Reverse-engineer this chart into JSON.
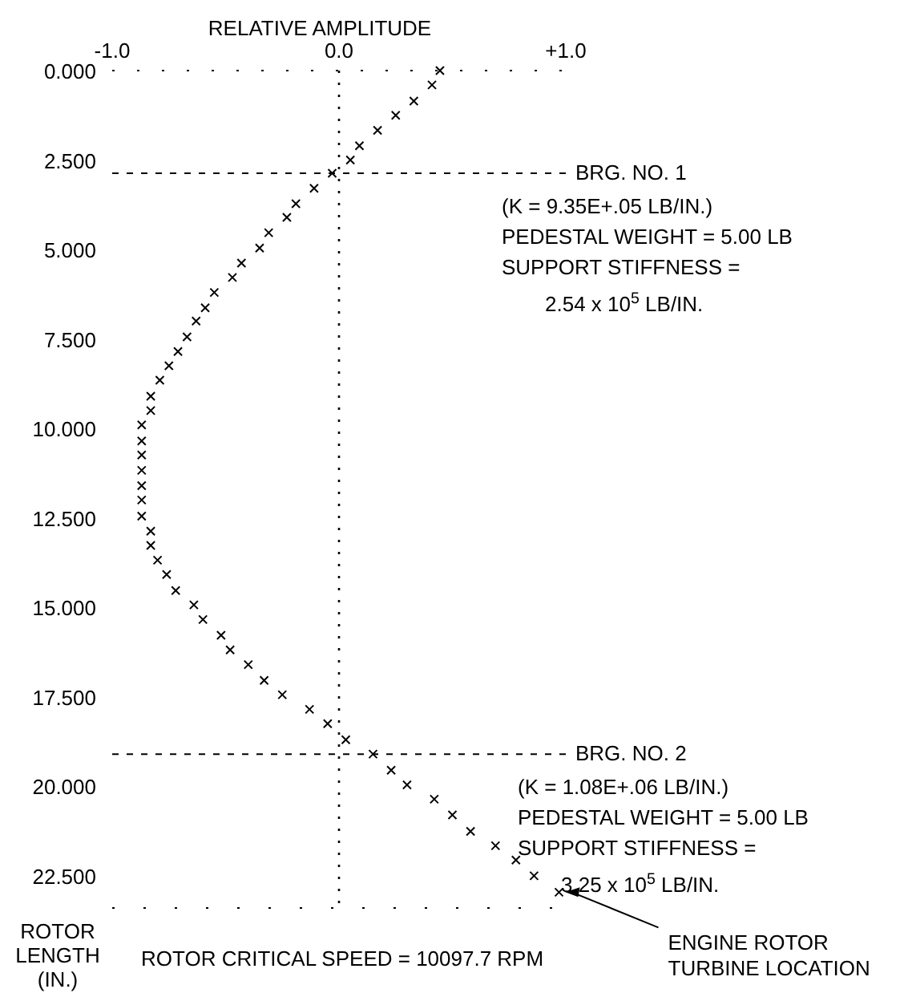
{
  "chart_data": {
    "type": "scatter",
    "xlabel": "RELATIVE AMPLITUDE",
    "ylabel": "ROTOR LENGTH (IN.)",
    "xlim": [
      -1,
      1
    ],
    "xticks": [
      {
        "value": -1,
        "label": "-1.0"
      },
      {
        "value": 0,
        "label": "0.0"
      },
      {
        "value": 1,
        "label": "+1.0"
      }
    ],
    "ylim": [
      23.4,
      0
    ],
    "yticks": [
      {
        "value": 0,
        "label": "0.000"
      },
      {
        "value": 2.5,
        "label": "2.500"
      },
      {
        "value": 5,
        "label": "5.000"
      },
      {
        "value": 7.5,
        "label": "7.500"
      },
      {
        "value": 10,
        "label": "10.000"
      },
      {
        "value": 12.5,
        "label": "12.500"
      },
      {
        "value": 15,
        "label": "15.000"
      },
      {
        "value": 17.5,
        "label": "17.500"
      },
      {
        "value": 20,
        "label": "20.000"
      },
      {
        "value": 22.5,
        "label": "22.500"
      }
    ],
    "marker": "cross",
    "series": [
      {
        "color": "#000000",
        "x": [
          0.445,
          0.41,
          0.33,
          0.25,
          0.17,
          0.09,
          0.05,
          -0.03,
          -0.11,
          -0.19,
          -0.23,
          -0.31,
          -0.35,
          -0.43,
          -0.47,
          -0.55,
          -0.59,
          -0.63,
          -0.67,
          -0.71,
          -0.75,
          -0.79,
          -0.83,
          -0.83,
          -0.87,
          -0.87,
          -0.87,
          -0.87,
          -0.87,
          -0.87,
          -0.87,
          -0.83,
          -0.83,
          -0.8,
          -0.76,
          -0.72,
          -0.64,
          -0.6,
          -0.52,
          -0.48,
          -0.4,
          -0.33,
          -0.25,
          -0.13,
          -0.05,
          0.03,
          0.15,
          0.23,
          0.3,
          0.42,
          0.5,
          0.58,
          0.69,
          0.78,
          0.86,
          0.97
        ],
        "values": [
          0,
          0.4,
          0.85,
          1.25,
          1.67,
          2.1,
          2.5,
          2.87,
          3.29,
          3.72,
          4.1,
          4.53,
          4.96,
          5.38,
          5.78,
          6.2,
          6.63,
          7.0,
          7.44,
          7.85,
          8.25,
          8.65,
          9.1,
          9.5,
          9.9,
          10.35,
          10.74,
          11.17,
          11.6,
          12.0,
          12.45,
          12.87,
          13.27,
          13.68,
          14.08,
          14.53,
          14.93,
          15.34,
          15.78,
          16.19,
          16.6,
          17.04,
          17.44,
          17.85,
          18.25,
          18.7,
          19.1,
          19.55,
          19.96,
          20.36,
          20.8,
          21.26,
          21.66,
          22.06,
          22.5,
          22.96
        ]
      }
    ],
    "ref_lines": [
      {
        "axis": "x",
        "value": 0,
        "line_style": "dotted"
      },
      {
        "axis": "y",
        "value": 2.87,
        "label": "BRG. NO. 1",
        "line_style": "dashed"
      },
      {
        "axis": "y",
        "value": 19.1,
        "label": "BRG. NO. 2",
        "line_style": "dashed"
      }
    ],
    "annotations": [
      "(K = 9.35E+.05 LB/IN.)",
      "PEDESTAL WEIGHT = 5.00 LB",
      "SUPPORT STIFFNESS =",
      "2.54 x 10$^{5}$ LB/IN.",
      "(K = 1.08E+.06 LB/IN.)",
      "PEDESTAL WEIGHT = 5.00 LB",
      "SUPPORT STIFFNESS =",
      "3.25 x 10$^{5}$ LB/IN.",
      "ROTOR CRITICAL SPEED = 10097.7 RPM",
      {
        "text": "ENGINE ROTOR TURBINE LOCATION",
        "x": 0.97,
        "y": 22.96
      }
    ]
  }
}
